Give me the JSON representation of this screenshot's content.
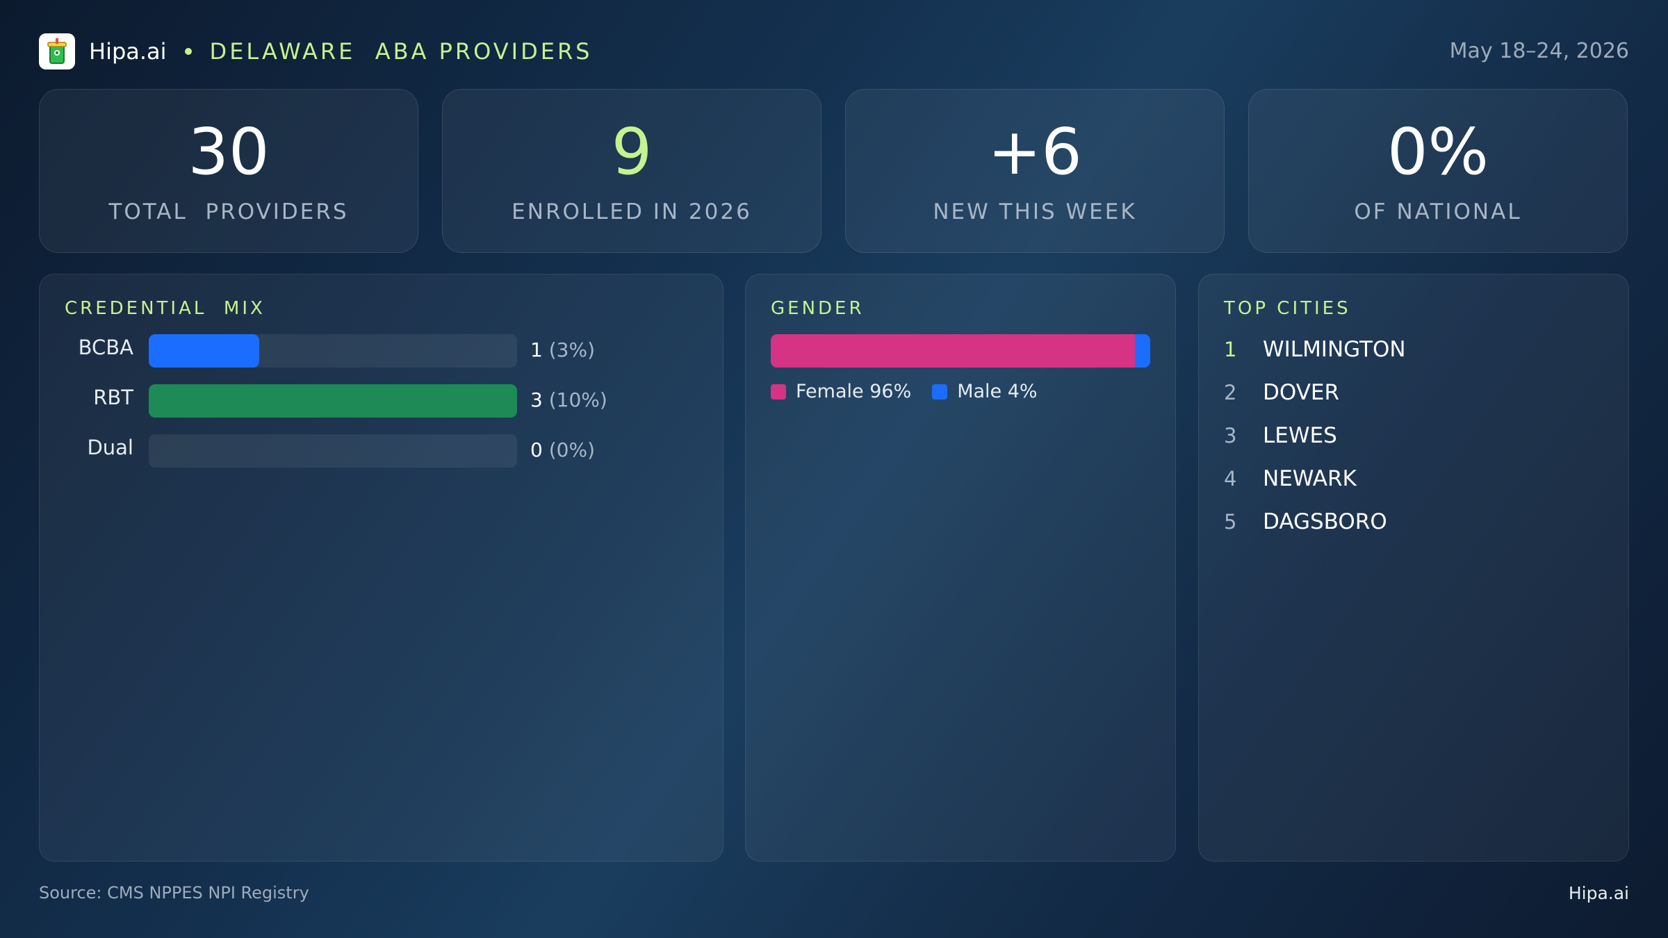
{
  "header": {
    "brand": "Hipa.ai",
    "title": "DELAWARE  ABA PROVIDERS",
    "date": "May 18–24, 2026"
  },
  "stats": [
    {
      "value": "30",
      "label": "TOTAL  PROVIDERS"
    },
    {
      "value": "9",
      "label": "ENROLLED IN 2026"
    },
    {
      "value": "+6",
      "label": "NEW THIS WEEK"
    },
    {
      "value": "0%",
      "label": "OF NATIONAL"
    }
  ],
  "credential_mix": {
    "title": "CREDENTIAL  MIX",
    "rows": [
      {
        "label": "BCBA",
        "count": "1",
        "pct": "(3%)",
        "fraction": 0.03
      },
      {
        "label": "RBT",
        "count": "3",
        "pct": "(10%)",
        "fraction": 0.1
      },
      {
        "label": "Dual",
        "count": "0",
        "pct": "(0%)",
        "fraction": 0.0
      }
    ]
  },
  "gender": {
    "title": "GENDER",
    "segments": [
      {
        "label": "Female 96%",
        "fraction": 0.96,
        "color": "#d63384"
      },
      {
        "label": "Male 4%",
        "fraction": 0.04,
        "color": "#1a6dff"
      }
    ]
  },
  "top_cities": {
    "title": "TOP CITIES",
    "items": [
      {
        "rank": "1",
        "name": "WILMINGTON"
      },
      {
        "rank": "2",
        "name": "DOVER"
      },
      {
        "rank": "3",
        "name": "LEWES"
      },
      {
        "rank": "4",
        "name": "NEWARK"
      },
      {
        "rank": "5",
        "name": "DAGSBORO"
      }
    ]
  },
  "footer": {
    "source": "Source: CMS NPPES NPI Registry",
    "brand": "Hipa.ai"
  },
  "colors": {
    "accent": "#c6f28f",
    "bcba": "#1a6dff",
    "rbt": "#1e8a55",
    "female": "#d63384",
    "male": "#1a6dff"
  }
}
